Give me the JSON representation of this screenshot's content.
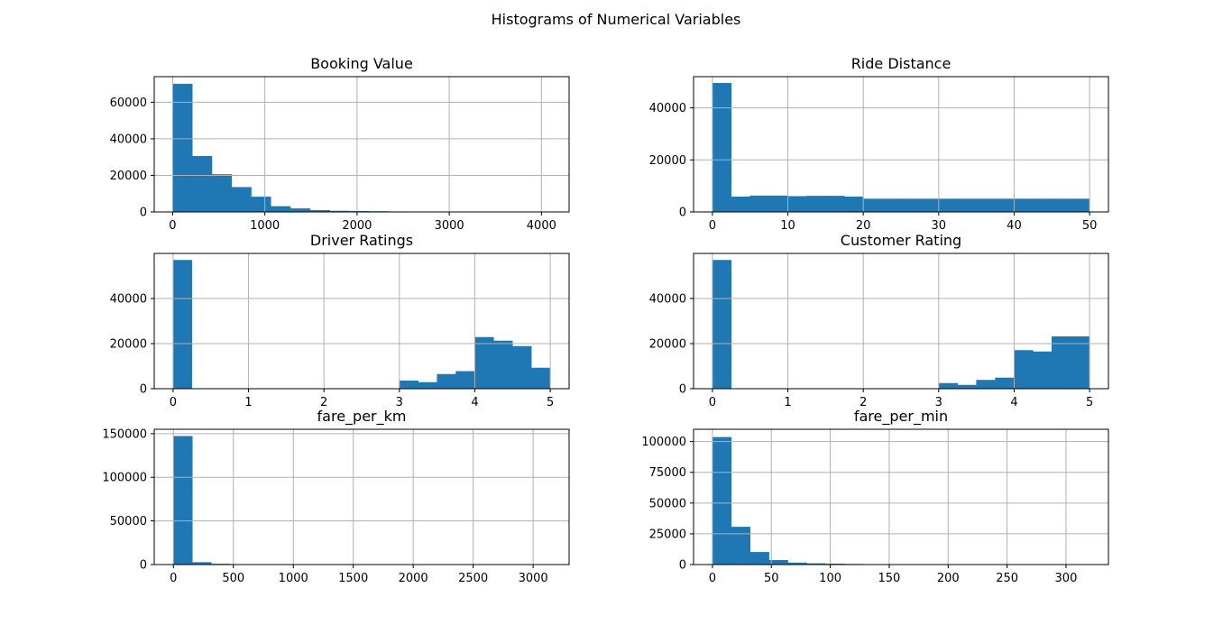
{
  "figure": {
    "title": "Histograms of Numerical Variables",
    "bar_color": "#1f77b4",
    "grid": true
  },
  "chart_data": [
    {
      "type": "bar",
      "title": "Booking Value",
      "xlim": [
        -200,
        4300
      ],
      "ylim": [
        0,
        74000
      ],
      "xticks": [
        0,
        1000,
        2000,
        3000,
        4000
      ],
      "yticks": [
        0,
        20000,
        40000,
        60000
      ],
      "bin_edges": [
        0,
        213,
        426,
        639,
        852,
        1065,
        1278,
        1491,
        1704,
        1917,
        2130,
        2343,
        2556,
        2769,
        2982,
        3195,
        3408,
        3621,
        3834,
        4047,
        4260
      ],
      "values": [
        70000,
        30500,
        20500,
        13500,
        8200,
        3000,
        1800,
        900,
        500,
        350,
        250,
        150,
        80,
        50,
        30,
        20,
        15,
        10,
        5,
        5
      ]
    },
    {
      "type": "bar",
      "title": "Ride Distance",
      "xlim": [
        -2.5,
        52.5
      ],
      "ylim": [
        0,
        52000
      ],
      "xticks": [
        0,
        10,
        20,
        30,
        40,
        50
      ],
      "yticks": [
        0,
        20000,
        40000
      ],
      "bin_edges": [
        0,
        2.5,
        5,
        7.5,
        10,
        12.5,
        15,
        17.5,
        20,
        22.5,
        25,
        27.5,
        30,
        32.5,
        35,
        37.5,
        40,
        42.5,
        45,
        47.5,
        50
      ],
      "values": [
        49500,
        5800,
        6200,
        6200,
        6000,
        6100,
        6100,
        5800,
        5000,
        5000,
        5000,
        5000,
        5000,
        5000,
        5000,
        5000,
        5000,
        5000,
        5000,
        5000
      ]
    },
    {
      "type": "bar",
      "title": "Driver Ratings",
      "xlim": [
        -0.25,
        5.25
      ],
      "ylim": [
        0,
        60000
      ],
      "xticks": [
        0,
        1,
        2,
        3,
        4,
        5
      ],
      "yticks": [
        0,
        20000,
        40000
      ],
      "bin_edges": [
        0,
        0.25,
        0.5,
        0.75,
        1,
        1.25,
        1.5,
        1.75,
        2,
        2.25,
        2.5,
        2.75,
        3,
        3.25,
        3.5,
        3.75,
        4,
        4.25,
        4.5,
        4.75,
        5
      ],
      "values": [
        57000,
        0,
        0,
        0,
        0,
        0,
        0,
        0,
        0,
        0,
        0,
        0,
        3500,
        2800,
        6400,
        7700,
        22800,
        21200,
        18800,
        9200
      ]
    },
    {
      "type": "bar",
      "title": "Customer Rating",
      "xlim": [
        -0.25,
        5.25
      ],
      "ylim": [
        0,
        60000
      ],
      "xticks": [
        0,
        1,
        2,
        3,
        4,
        5
      ],
      "yticks": [
        0,
        20000,
        40000
      ],
      "bin_edges": [
        0,
        0.25,
        0.5,
        0.75,
        1,
        1.25,
        1.5,
        1.75,
        2,
        2.25,
        2.5,
        2.75,
        3,
        3.25,
        3.5,
        3.75,
        4,
        4.25,
        4.5,
        4.75,
        5
      ],
      "values": [
        57000,
        0,
        0,
        0,
        0,
        0,
        0,
        0,
        0,
        0,
        0,
        0,
        2400,
        1600,
        3800,
        4800,
        17000,
        16400,
        23100,
        23100
      ]
    },
    {
      "type": "bar",
      "title": "fare_per_km",
      "xlim": [
        -160,
        3300
      ],
      "ylim": [
        0,
        155000
      ],
      "xticks": [
        0,
        500,
        1000,
        1500,
        2000,
        2500,
        3000
      ],
      "yticks": [
        0,
        50000,
        100000,
        150000
      ],
      "bin_edges": [
        0,
        158,
        316,
        474,
        632,
        790,
        948,
        1106,
        1264,
        1422,
        1580,
        1738,
        1896,
        2054,
        2212,
        2370,
        2528,
        2686,
        2844,
        3002,
        3160
      ],
      "values": [
        147000,
        2500,
        600,
        200,
        100,
        50,
        30,
        20,
        10,
        10,
        5,
        5,
        5,
        5,
        5,
        5,
        5,
        5,
        5,
        5
      ]
    },
    {
      "type": "bar",
      "title": "fare_per_min",
      "xlim": [
        -16,
        336
      ],
      "ylim": [
        0,
        110000
      ],
      "xticks": [
        0,
        50,
        100,
        150,
        200,
        250,
        300
      ],
      "yticks": [
        0,
        25000,
        50000,
        75000,
        100000
      ],
      "bin_edges": [
        0,
        16,
        32,
        48,
        64,
        80,
        96,
        112,
        128,
        144,
        160,
        176,
        192,
        208,
        224,
        240,
        256,
        272,
        288,
        304,
        320
      ],
      "values": [
        103500,
        30500,
        10000,
        3500,
        1400,
        800,
        500,
        300,
        150,
        80,
        50,
        30,
        20,
        10,
        5,
        5,
        5,
        5,
        5,
        5
      ]
    }
  ]
}
